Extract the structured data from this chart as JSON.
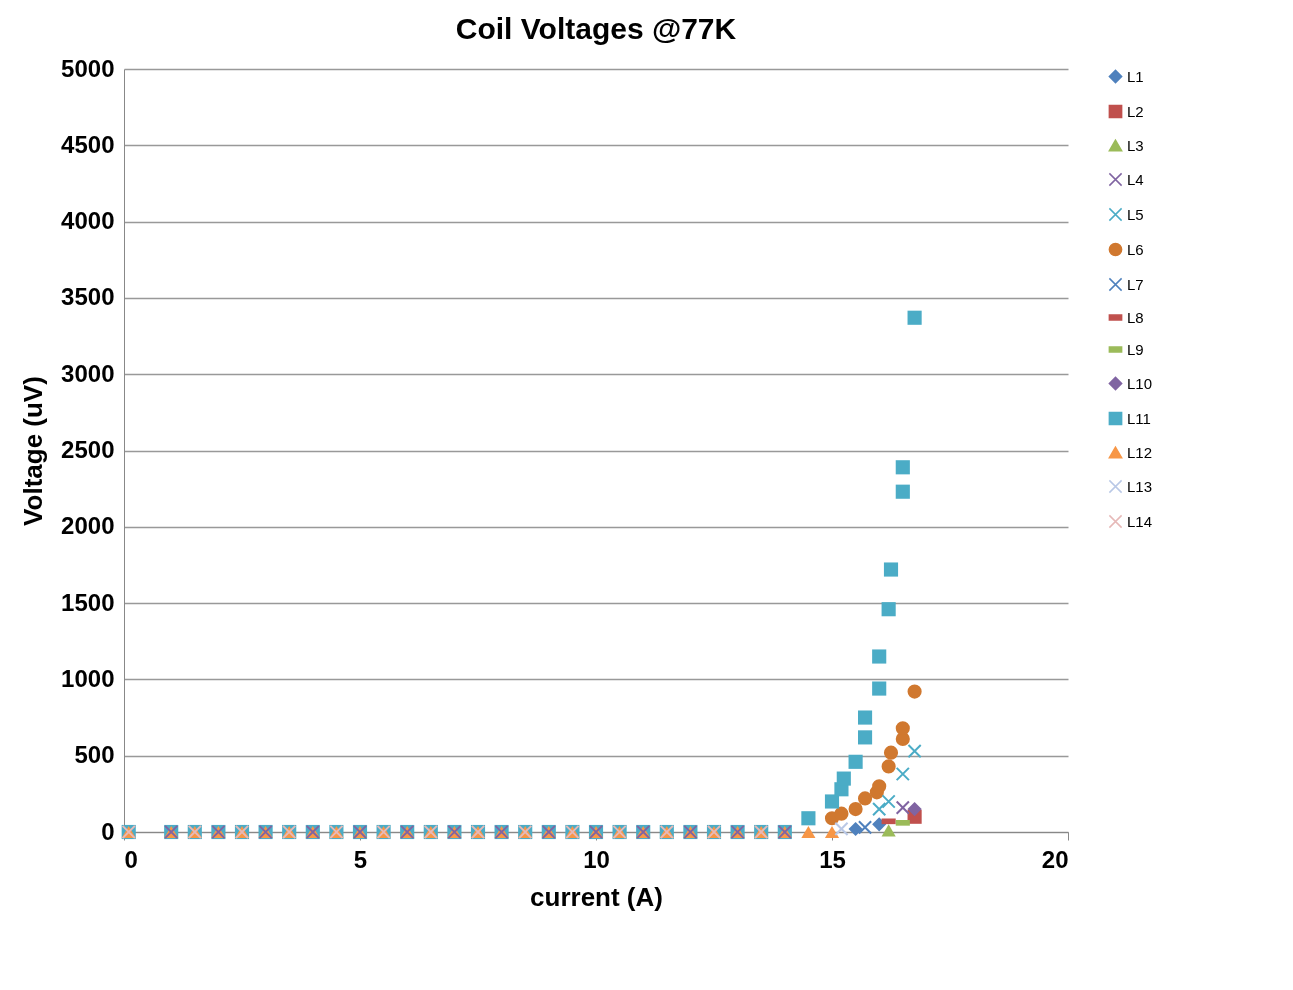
{
  "chart_data": {
    "type": "scatter",
    "title": "Coil Voltages @77K",
    "xlabel": "current (A)",
    "ylabel": "Voltage (uV)",
    "xlim": [
      0,
      20
    ],
    "xticks": [
      0,
      5,
      10,
      15,
      20
    ],
    "ylim": [
      0,
      5000
    ],
    "yticks": [
      0,
      500,
      1000,
      1500,
      2000,
      2500,
      3000,
      3500,
      4000,
      4500,
      5000
    ],
    "grid": "y",
    "legend": "right",
    "series": [
      {
        "name": "L1",
        "color": "#4f81bd",
        "marker": "diamond",
        "x": [
          15.5,
          16
        ],
        "values": [
          20,
          50
        ]
      },
      {
        "name": "L2",
        "color": "#c0504d",
        "marker": "square",
        "x": [
          16.75
        ],
        "values": [
          100
        ]
      },
      {
        "name": "L3",
        "color": "#9bbb59",
        "marker": "triangle",
        "x": [
          16.2
        ],
        "values": [
          10
        ]
      },
      {
        "name": "L4",
        "color": "#8064a2",
        "marker": "cross",
        "x": [
          1,
          2,
          3,
          4,
          5,
          6,
          7,
          8,
          9,
          10,
          11,
          12,
          13,
          14,
          16.5
        ],
        "values": [
          0,
          0,
          0,
          0,
          0,
          0,
          0,
          0,
          0,
          0,
          0,
          0,
          0,
          0,
          160
        ]
      },
      {
        "name": "L5",
        "color": "#4bacc6",
        "marker": "cross",
        "x": [
          16,
          16.2,
          16.5,
          16.75
        ],
        "values": [
          150,
          200,
          380,
          530
        ]
      },
      {
        "name": "L6",
        "color": "#d0782f",
        "marker": "circle",
        "x": [
          15,
          15.2,
          15.5,
          15.7,
          15.95,
          16,
          16.2,
          16.25,
          16.5,
          16.5,
          16.75
        ],
        "values": [
          90,
          120,
          150,
          220,
          260,
          300,
          430,
          520,
          610,
          680,
          920
        ]
      },
      {
        "name": "L7",
        "color": "#4f81bd",
        "marker": "cross",
        "x": [
          15.7
        ],
        "values": [
          30
        ]
      },
      {
        "name": "L8",
        "color": "#c0504d",
        "x": [
          16.2
        ],
        "values": [
          70
        ]
      },
      {
        "name": "L9",
        "color": "#9bbb59",
        "x": [
          16.5
        ],
        "values": [
          60
        ]
      },
      {
        "name": "L10",
        "color": "#8064a2",
        "marker": "diamond",
        "x": [
          16.75
        ],
        "values": [
          150
        ]
      },
      {
        "name": "L11",
        "color": "#4bacc6",
        "marker": "square",
        "x": [
          0.1,
          1,
          1.5,
          2,
          2.5,
          3,
          3.5,
          4,
          4.5,
          5,
          5.5,
          6,
          6.5,
          7,
          7.5,
          8,
          8.5,
          9,
          9.5,
          10,
          10.5,
          11,
          11.5,
          12,
          12.5,
          13,
          13.5,
          14,
          14.5,
          15,
          15.2,
          15.25,
          15.5,
          15.7,
          15.7,
          16,
          16,
          16.2,
          16.25,
          16.5,
          16.5,
          16.75
        ],
        "values": [
          0,
          0,
          0,
          0,
          0,
          0,
          0,
          0,
          0,
          0,
          0,
          0,
          0,
          0,
          0,
          0,
          0,
          0,
          0,
          0,
          0,
          0,
          0,
          0,
          0,
          0,
          0,
          0,
          90,
          200,
          280,
          350,
          460,
          620,
          750,
          940,
          1150,
          1460,
          1720,
          2230,
          2390,
          3370
        ]
      },
      {
        "name": "L12",
        "color": "#f79646",
        "marker": "triangle",
        "x": [
          0.1,
          1,
          1.5,
          2,
          2.5,
          3,
          3.5,
          4,
          4.5,
          5,
          5.5,
          6,
          6.5,
          7,
          7.5,
          8,
          8.5,
          9,
          9.5,
          10,
          10.5,
          11,
          11.5,
          12,
          12.5,
          13,
          13.5,
          14,
          14.5,
          15
        ],
        "values": [
          0,
          0,
          0,
          0,
          0,
          0,
          0,
          0,
          0,
          0,
          0,
          0,
          0,
          0,
          0,
          0,
          0,
          0,
          0,
          0,
          0,
          0,
          0,
          0,
          0,
          0,
          0,
          0,
          0,
          0
        ]
      },
      {
        "name": "L13",
        "color": "#b9c8e6",
        "marker": "cross",
        "x": [
          15.2
        ],
        "values": [
          20
        ]
      },
      {
        "name": "L14",
        "color": "#e6b9b8",
        "marker": "cross",
        "x": [
          0.1,
          1.5,
          2.5,
          3.5,
          4.5,
          5.5,
          6.5,
          7.5,
          8.5,
          9.5,
          10.5,
          11.5,
          12.5,
          13.5
        ],
        "values": [
          0,
          0,
          0,
          0,
          0,
          0,
          0,
          0,
          0,
          0,
          0,
          0,
          0,
          0
        ]
      }
    ]
  }
}
